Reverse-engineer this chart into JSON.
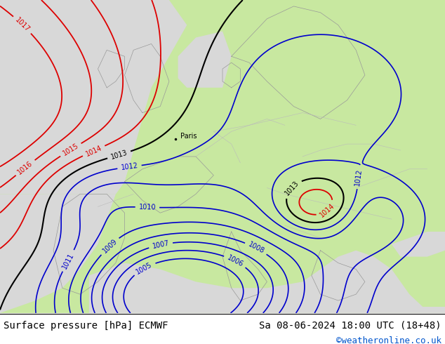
{
  "title_left": "Surface pressure [hPa] ECMWF",
  "title_right": "Sa 08-06-2024 18:00 UTC (18+48)",
  "credit": "©weatheronline.co.uk",
  "credit_color": "#0055cc",
  "bg_color": "#ffffff",
  "land_green": "#c8e8a0",
  "sea_gray": "#d8d8d8",
  "coast_color": "#999999",
  "red_color": "#dd0000",
  "blue_color": "#0000cc",
  "black_color": "#000000",
  "label_fontsize": 10,
  "credit_fontsize": 9,
  "footer_bg": "#ffffff",
  "paris_label": "Paris",
  "figsize": [
    6.34,
    4.9
  ],
  "dpi": 100
}
